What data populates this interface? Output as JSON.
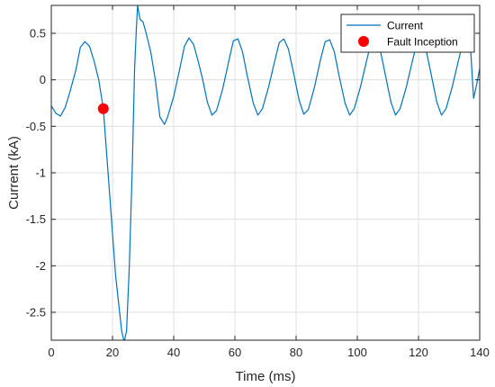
{
  "chart_data": {
    "type": "line",
    "title": "",
    "xlabel": "Time (ms)",
    "ylabel": "Current (kA)",
    "xlim": [
      0,
      140
    ],
    "ylim": [
      -2.8,
      0.8
    ],
    "xticks": [
      0,
      20,
      40,
      60,
      80,
      100,
      120,
      140
    ],
    "xtick_labels": [
      "0",
      "20",
      "40",
      "60",
      "80",
      "100",
      "120",
      "140"
    ],
    "yticks": [
      0.5,
      0,
      -0.5,
      -1,
      -1.5,
      -2,
      -2.5
    ],
    "ytick_labels": [
      "0.5",
      "0",
      "-0.5",
      "-1",
      "-1.5",
      "-2",
      "-2.5"
    ],
    "grid": true,
    "legend_position": "top-right",
    "series": [
      {
        "name": "Current",
        "color": "#0072bd",
        "style": "line",
        "points": [
          [
            0,
            -0.28
          ],
          [
            1.5,
            -0.36
          ],
          [
            3,
            -0.39
          ],
          [
            4.5,
            -0.3
          ],
          [
            6,
            -0.14
          ],
          [
            8,
            0.1
          ],
          [
            9.5,
            0.35
          ],
          [
            11,
            0.41
          ],
          [
            12.5,
            0.36
          ],
          [
            14,
            0.2
          ],
          [
            15.5,
            0.0
          ],
          [
            17,
            -0.31
          ],
          [
            19,
            -1.2
          ],
          [
            21,
            -2.1
          ],
          [
            23,
            -2.7
          ],
          [
            23.8,
            -2.82
          ],
          [
            24.6,
            -2.7
          ],
          [
            25.5,
            -2.0
          ],
          [
            26.5,
            -0.9
          ],
          [
            27.2,
            0.1
          ],
          [
            27.8,
            0.55
          ],
          [
            28.2,
            0.8
          ],
          [
            29,
            0.65
          ],
          [
            30,
            0.62
          ],
          [
            31,
            0.5
          ],
          [
            32.5,
            0.3
          ],
          [
            34,
            0.0
          ],
          [
            35.5,
            -0.4
          ],
          [
            37,
            -0.48
          ],
          [
            38,
            -0.4
          ],
          [
            40,
            -0.18
          ],
          [
            42,
            0.12
          ],
          [
            43.5,
            0.36
          ],
          [
            45,
            0.45
          ],
          [
            46.5,
            0.38
          ],
          [
            48,
            0.2
          ],
          [
            49.5,
            0.0
          ],
          [
            51,
            -0.24
          ],
          [
            52.5,
            -0.38
          ],
          [
            54,
            -0.33
          ],
          [
            56,
            -0.1
          ],
          [
            58,
            0.2
          ],
          [
            59.5,
            0.42
          ],
          [
            61,
            0.44
          ],
          [
            62.5,
            0.3
          ],
          [
            64,
            0.05
          ],
          [
            66,
            -0.25
          ],
          [
            67.5,
            -0.38
          ],
          [
            69,
            -0.31
          ],
          [
            71,
            -0.08
          ],
          [
            73,
            0.2
          ],
          [
            74.5,
            0.4
          ],
          [
            76,
            0.44
          ],
          [
            77.5,
            0.33
          ],
          [
            79,
            0.1
          ],
          [
            81,
            -0.22
          ],
          [
            82.5,
            -0.37
          ],
          [
            84,
            -0.32
          ],
          [
            86,
            -0.08
          ],
          [
            88,
            0.22
          ],
          [
            89.5,
            0.41
          ],
          [
            91,
            0.43
          ],
          [
            92.5,
            0.3
          ],
          [
            94,
            0.05
          ],
          [
            96,
            -0.25
          ],
          [
            97.5,
            -0.38
          ],
          [
            99,
            -0.31
          ],
          [
            101,
            -0.08
          ],
          [
            103,
            0.2
          ],
          [
            104.5,
            0.4
          ],
          [
            106,
            0.44
          ],
          [
            107.5,
            0.32
          ],
          [
            109,
            0.08
          ],
          [
            111,
            -0.24
          ],
          [
            112.5,
            -0.38
          ],
          [
            114,
            -0.31
          ],
          [
            116,
            -0.08
          ],
          [
            118,
            0.2
          ],
          [
            119.5,
            0.4
          ],
          [
            121,
            0.44
          ],
          [
            122.5,
            0.32
          ],
          [
            124,
            0.08
          ],
          [
            126,
            -0.24
          ],
          [
            127.5,
            -0.38
          ],
          [
            129,
            -0.31
          ],
          [
            131,
            -0.08
          ],
          [
            133,
            0.2
          ],
          [
            134.5,
            0.4
          ],
          [
            136,
            0.43
          ],
          [
            137,
            0.34
          ],
          [
            138,
            -0.2
          ],
          [
            139,
            -0.05
          ],
          [
            140,
            0.12
          ]
        ]
      },
      {
        "name": "Fault Inception",
        "color": "#ff0000",
        "style": "marker",
        "points": [
          [
            17,
            -0.31
          ]
        ]
      }
    ]
  }
}
